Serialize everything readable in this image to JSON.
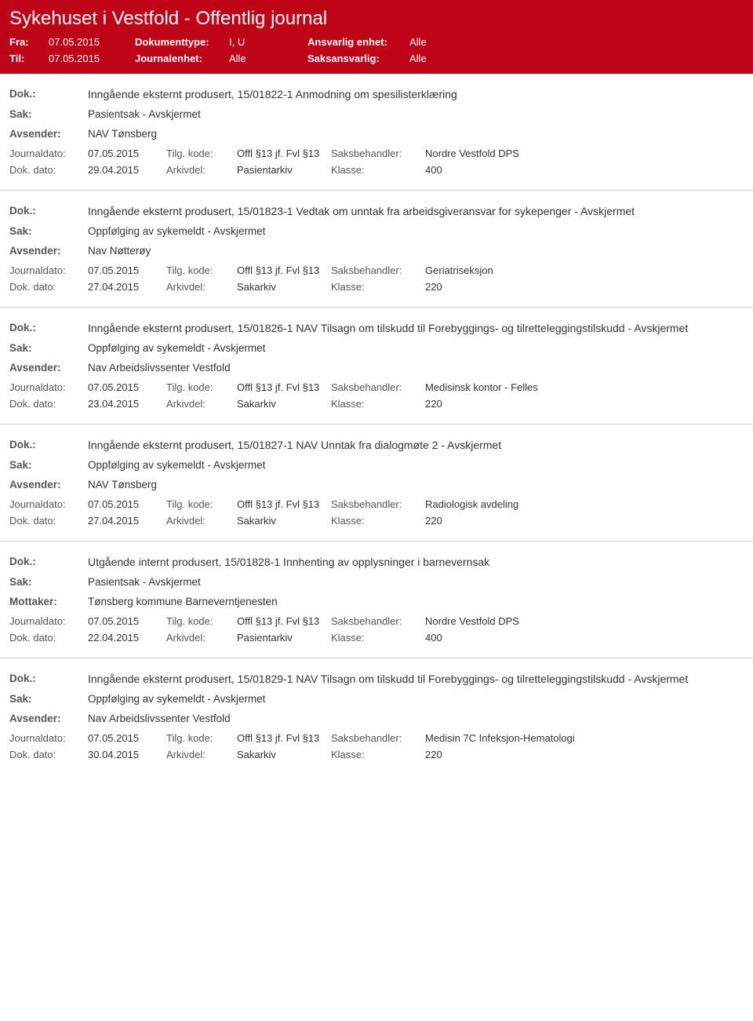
{
  "header": {
    "title": "Sykehuset i Vestfold - Offentlig journal",
    "fra_label": "Fra:",
    "fra_value": "07.05.2015",
    "til_label": "Til:",
    "til_value": "07.05.2015",
    "dokumenttype_label": "Dokumenttype:",
    "dokumenttype_value": "I, U",
    "journalenhet_label": "Journalenhet:",
    "journalenhet_value": "Alle",
    "ansvarlig_label": "Ansvarlig enhet:",
    "ansvarlig_value": "Alle",
    "saksansvarlig_label": "Saksansvarlig:",
    "saksansvarlig_value": "Alle"
  },
  "labels": {
    "dok": "Dok.:",
    "sak": "Sak:",
    "avsender": "Avsender:",
    "mottaker": "Mottaker:",
    "journaldato": "Journaldato:",
    "dokdato": "Dok. dato:",
    "tilgkode": "Tilg. kode:",
    "arkivdel": "Arkivdel:",
    "saksbehandler": "Saksbehandler:",
    "klasse": "Klasse:"
  },
  "entries": [
    {
      "dok": "Inngående eksternt produsert, 15/01822-1 Anmodning om spesilisterklæring",
      "sak": "Pasientsak - Avskjermet",
      "party_label": "Avsender:",
      "party": "NAV Tønsberg",
      "journaldato": "07.05.2015",
      "tilgkode": "Offl §13 jf. Fvl §13",
      "saksbehandler": "Nordre Vestfold DPS",
      "dokdato": "29.04.2015",
      "arkivdel": "Pasientarkiv",
      "klasse": "400"
    },
    {
      "dok": "Inngående eksternt produsert, 15/01823-1 Vedtak om unntak fra arbeidsgiveransvar for sykepenger - Avskjermet",
      "sak": "Oppfølging av sykemeldt - Avskjermet",
      "party_label": "Avsender:",
      "party": "Nav Nøtterøy",
      "journaldato": "07.05.2015",
      "tilgkode": "Offl §13 jf. Fvl §13",
      "saksbehandler": "Geriatriseksjon",
      "dokdato": "27.04.2015",
      "arkivdel": "Sakarkiv",
      "klasse": "220"
    },
    {
      "dok": "Inngående eksternt produsert, 15/01826-1 NAV Tilsagn om tilskudd til Forebyggings- og tilretteleggingstilskudd - Avskjermet",
      "sak": "Oppfølging av sykemeldt - Avskjermet",
      "party_label": "Avsender:",
      "party": "Nav Arbeidslivssenter Vestfold",
      "journaldato": "07.05.2015",
      "tilgkode": "Offl §13 jf. Fvl §13",
      "saksbehandler": "Medisinsk kontor - Felles",
      "dokdato": "23.04.2015",
      "arkivdel": "Sakarkiv",
      "klasse": "220"
    },
    {
      "dok": "Inngående eksternt produsert, 15/01827-1 NAV Unntak fra dialogmøte 2 - Avskjermet",
      "sak": "Oppfølging av sykemeldt - Avskjermet",
      "party_label": "Avsender:",
      "party": "NAV Tønsberg",
      "journaldato": "07.05.2015",
      "tilgkode": "Offl §13 jf. Fvl §13",
      "saksbehandler": "Radiologisk avdeling",
      "dokdato": "27.04.2015",
      "arkivdel": "Sakarkiv",
      "klasse": "220"
    },
    {
      "dok": "Utgående internt produsert, 15/01828-1 Innhenting av opplysninger i barnevernsak",
      "sak": "Pasientsak - Avskjermet",
      "party_label": "Mottaker:",
      "party": "Tønsberg kommune Barneverntjenesten",
      "journaldato": "07.05.2015",
      "tilgkode": "Offl §13 jf. Fvl §13",
      "saksbehandler": "Nordre Vestfold DPS",
      "dokdato": "22.04.2015",
      "arkivdel": "Pasientarkiv",
      "klasse": "400"
    },
    {
      "dok": "Inngående eksternt produsert, 15/01829-1 NAV Tilsagn om tilskudd til Forebyggings- og tilretteleggingstilskudd - Avskjermet",
      "sak": "Oppfølging av sykemeldt - Avskjermet",
      "party_label": "Avsender:",
      "party": "Nav Arbeidslivssenter Vestfold",
      "journaldato": "07.05.2015",
      "tilgkode": "Offl §13 jf. Fvl §13",
      "saksbehandler": "Medisin 7C Infeksjon-Hematologi",
      "dokdato": "30.04.2015",
      "arkivdel": "Sakarkiv",
      "klasse": "220"
    }
  ]
}
